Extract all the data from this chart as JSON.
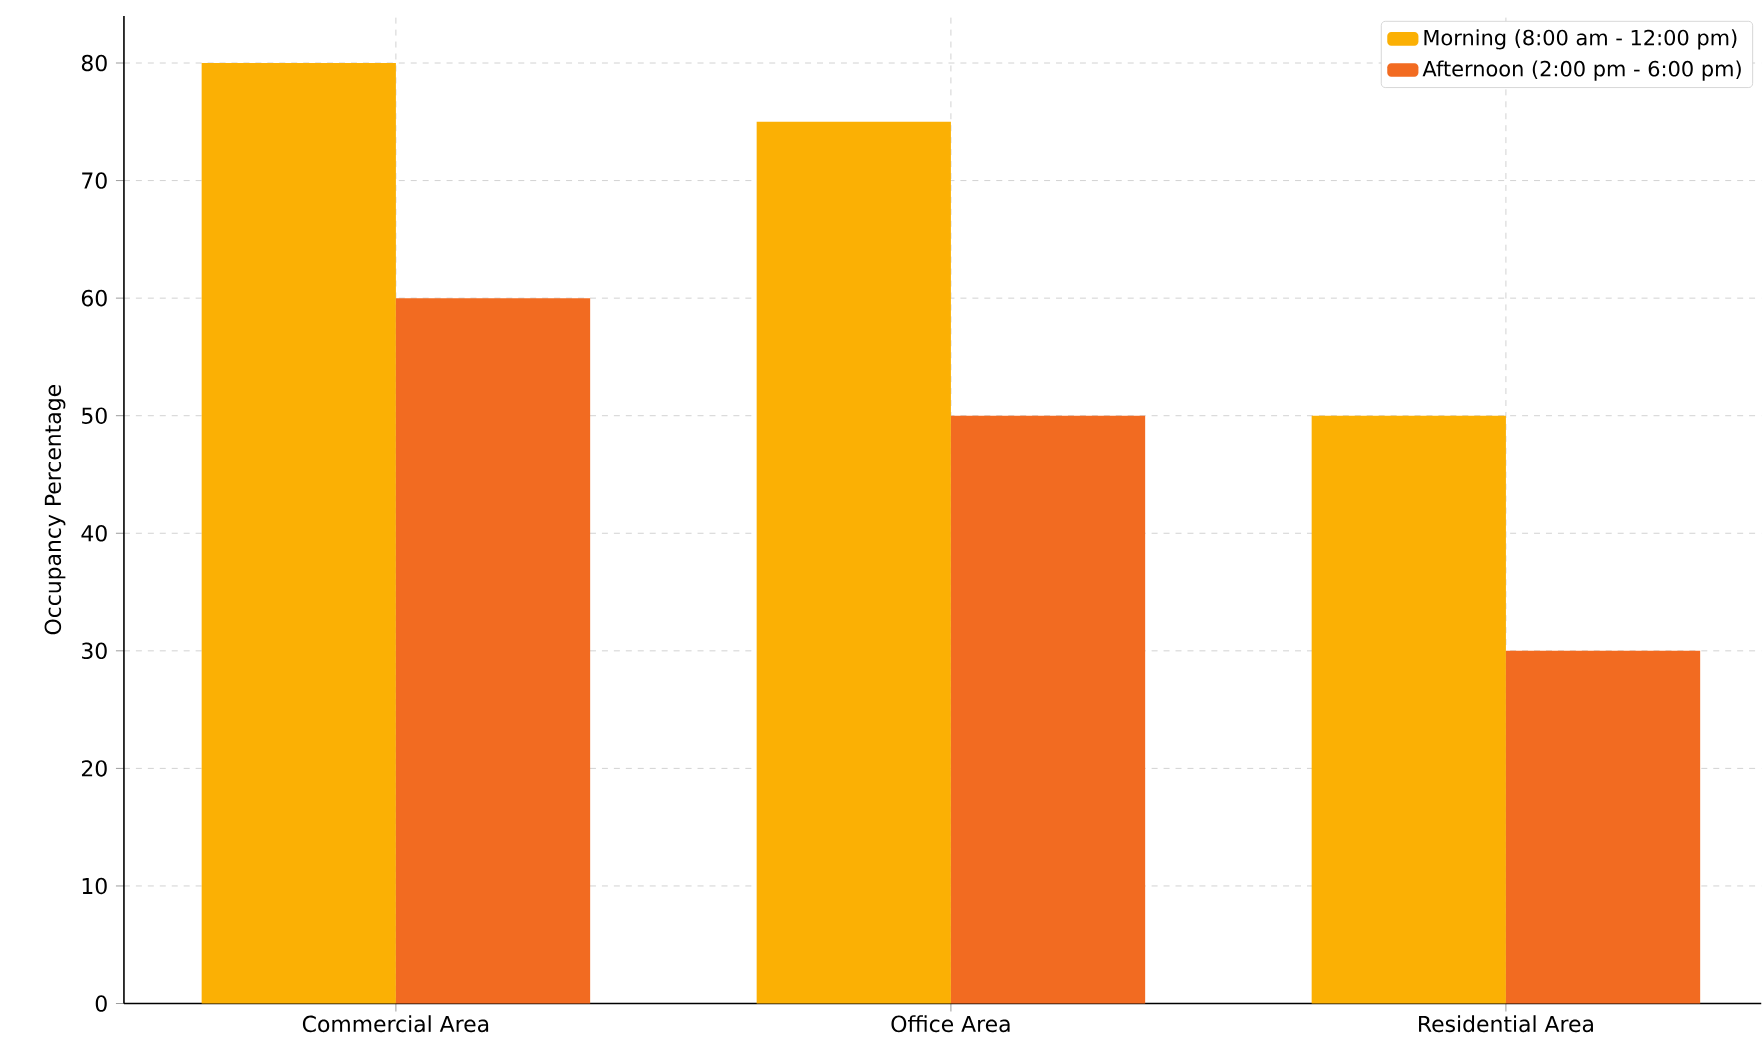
{
  "chart_data": {
    "type": "bar",
    "ylabel": "Occupancy Percentage",
    "categories": [
      "Commercial Area",
      "Office Area",
      "Residential Area"
    ],
    "series": [
      {
        "name": "Morning (8:00 am - 12:00 pm)",
        "color": "#fbb004",
        "values": [
          80,
          75,
          50
        ]
      },
      {
        "name": "Afternoon (2:00 pm - 6:00 pm)",
        "color": "#f26b21",
        "values": [
          60,
          50,
          30
        ]
      }
    ],
    "ylim": [
      0,
      84
    ],
    "yticks": [
      0,
      10,
      20,
      30,
      40,
      50,
      60,
      70,
      80
    ],
    "grid": true,
    "legend": "top right"
  }
}
